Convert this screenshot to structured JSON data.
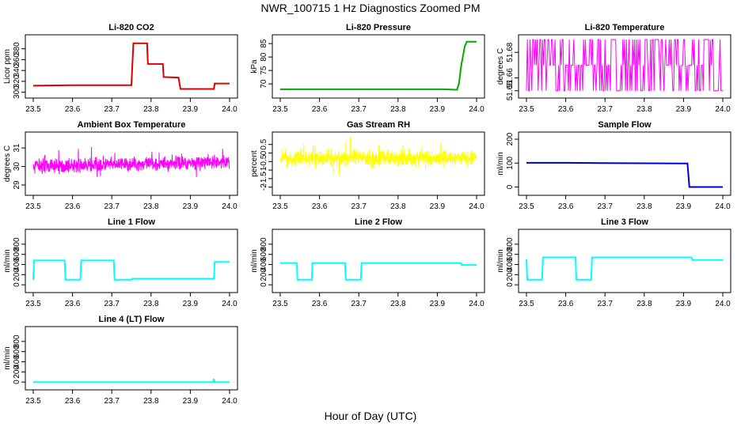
{
  "page": {
    "title": "NWR_100715  1 Hz Diagnostics Zoomed PM",
    "xlabel": "Hour of Day (UTC)"
  },
  "chart_data": [
    {
      "type": "line",
      "title": "Li-820 CO2",
      "ylabel": "Licor ppm",
      "color": "#dd0000",
      "xlim": [
        23.5,
        24.0
      ],
      "ylim": [
        298,
        397
      ],
      "xticks": [
        "23.5",
        "23.6",
        "23.7",
        "23.8",
        "23.9",
        "24.0"
      ],
      "yticks": [
        300,
        320,
        340,
        360,
        380
      ],
      "series": [
        {
          "x": [
            23.5,
            23.6,
            23.75,
            23.755,
            23.79,
            23.792,
            23.83,
            23.832,
            23.87,
            23.875,
            23.96,
            23.962,
            24.0
          ],
          "y": [
            312,
            313,
            313,
            390,
            390,
            352,
            352,
            328,
            327,
            306,
            306,
            316,
            316
          ]
        }
      ]
    },
    {
      "type": "line",
      "title": "Li-820 Pressure",
      "ylabel": "kPa",
      "color": "#00aa00",
      "xlim": [
        23.5,
        24.0
      ],
      "ylim": [
        66.5,
        86.5
      ],
      "xticks": [
        "23.5",
        "23.6",
        "23.7",
        "23.8",
        "23.9",
        "24.0"
      ],
      "yticks": [
        70,
        75,
        80,
        85
      ],
      "series": [
        {
          "x": [
            23.5,
            23.92,
            23.95,
            23.955,
            23.96,
            23.965,
            23.97,
            23.975,
            24.0
          ],
          "y": [
            68,
            68,
            67.8,
            70,
            76,
            80,
            84,
            85.7,
            85.7
          ]
        }
      ]
    },
    {
      "type": "line",
      "title": "Li-820 Temperature",
      "ylabel": "degrees C",
      "color": "#ff00ff",
      "xlim": [
        23.5,
        24.0
      ],
      "ylim": [
        51.648,
        51.69
      ],
      "xticks": [
        "23.5",
        "23.6",
        "23.7",
        "23.8",
        "23.9",
        "24.0"
      ],
      "yticks": [
        51.65,
        51.66,
        51.68
      ],
      "series": [
        {
          "x": [
            23.5,
            24.0
          ],
          "y": [
            51.65,
            51.69
          ],
          "levels": [
            51.65,
            51.67,
            51.69
          ]
        }
      ]
    },
    {
      "type": "line",
      "title": "Ambient Box Temperature",
      "ylabel": "degrees C",
      "color": "#ff00ff",
      "xlim": [
        23.5,
        24.0
      ],
      "ylim": [
        28.7,
        31.6
      ],
      "xticks": [
        "23.5",
        "23.6",
        "23.7",
        "23.8",
        "23.9",
        "24.0"
      ],
      "yticks": [
        29.0,
        30.0,
        31.0
      ],
      "series": [
        {
          "x": [
            23.5,
            24.0
          ],
          "y": [
            30.0,
            30.25
          ],
          "noise": 0.35
        }
      ]
    },
    {
      "type": "line",
      "title": "Gas Stream RH",
      "ylabel": "percent",
      "color": "#ffff00",
      "xlim": [
        23.5,
        24.0
      ],
      "ylim": [
        -2.2,
        0.95
      ],
      "xticks": [
        "23.5",
        "23.6",
        "23.7",
        "23.8",
        "23.9",
        "24.0"
      ],
      "yticks": [
        -2.0,
        -1.5,
        -1.0,
        -0.5,
        0.0,
        0.5
      ],
      "series": [
        {
          "x": [
            23.5,
            24.0
          ],
          "y": [
            -0.3,
            -0.3
          ],
          "noise": 0.45
        }
      ]
    },
    {
      "type": "line",
      "title": "Sample Flow",
      "ylabel": "ml/min",
      "color": "#0000cc",
      "xlim": [
        23.5,
        24.0
      ],
      "ylim": [
        -15,
        210
      ],
      "xticks": [
        "23.5",
        "23.6",
        "23.7",
        "23.8",
        "23.9",
        "24.0"
      ],
      "yticks": [
        0,
        100,
        200
      ],
      "series": [
        {
          "x": [
            23.5,
            23.6,
            23.7,
            23.8,
            23.91,
            23.915,
            24.0
          ],
          "y": [
            101,
            101,
            100,
            99,
            98,
            0,
            0
          ]
        }
      ]
    },
    {
      "type": "line",
      "title": "Line 1 Flow",
      "ylabel": "ml/min",
      "color": "#00ffff",
      "xlim": [
        23.5,
        24.0
      ],
      "ylim": [
        -60,
        1000
      ],
      "xticks": [
        "23.5",
        "23.6",
        "23.7",
        "23.8",
        "23.9",
        "24.0"
      ],
      "yticks": [
        0,
        200,
        400,
        600,
        800
      ],
      "series": [
        {
          "x": [
            23.5,
            23.502,
            23.58,
            23.582,
            23.62,
            23.622,
            23.705,
            23.707,
            23.75,
            23.752,
            23.96,
            23.962,
            24.0
          ],
          "y": [
            100,
            480,
            480,
            100,
            100,
            480,
            480,
            100,
            100,
            120,
            120,
            450,
            450
          ]
        }
      ]
    },
    {
      "type": "line",
      "title": "Line 2 Flow",
      "ylabel": "ml/min",
      "color": "#00ffff",
      "xlim": [
        23.5,
        24.0
      ],
      "ylim": [
        -60,
        1000
      ],
      "xticks": [
        "23.5",
        "23.6",
        "23.7",
        "23.8",
        "23.9",
        "24.0"
      ],
      "yticks": [
        0,
        200,
        400,
        600,
        800
      ],
      "series": [
        {
          "x": [
            23.5,
            23.542,
            23.544,
            23.58,
            23.582,
            23.665,
            23.667,
            23.705,
            23.707,
            23.96,
            23.962,
            24.0
          ],
          "y": [
            430,
            430,
            100,
            100,
            430,
            430,
            100,
            100,
            430,
            430,
            390,
            390
          ]
        }
      ]
    },
    {
      "type": "line",
      "title": "Line 3 Flow",
      "ylabel": "ml/min",
      "color": "#00ffff",
      "xlim": [
        23.5,
        24.0
      ],
      "ylim": [
        -60,
        1000
      ],
      "xticks": [
        "23.5",
        "23.6",
        "23.7",
        "23.8",
        "23.9",
        "24.0"
      ],
      "yticks": [
        0,
        200,
        400,
        600,
        800
      ],
      "series": [
        {
          "x": [
            23.5,
            23.502,
            23.54,
            23.542,
            23.625,
            23.627,
            23.665,
            23.667,
            23.92,
            23.922,
            24.0
          ],
          "y": [
            500,
            100,
            100,
            540,
            540,
            100,
            100,
            540,
            540,
            490,
            490
          ]
        }
      ]
    },
    {
      "type": "line",
      "title": "Line 4 (LT) Flow",
      "ylabel": "ml/min",
      "color": "#00ffff",
      "xlim": [
        23.5,
        24.0
      ],
      "ylim": [
        -60,
        1000
      ],
      "xticks": [
        "23.5",
        "23.6",
        "23.7",
        "23.8",
        "23.9",
        "24.0"
      ],
      "yticks": [
        0,
        200,
        400,
        600,
        800
      ],
      "series": [
        {
          "x": [
            23.5,
            23.958,
            23.96,
            23.962,
            24.0
          ],
          "y": [
            0,
            0,
            60,
            0,
            0
          ]
        }
      ]
    }
  ]
}
